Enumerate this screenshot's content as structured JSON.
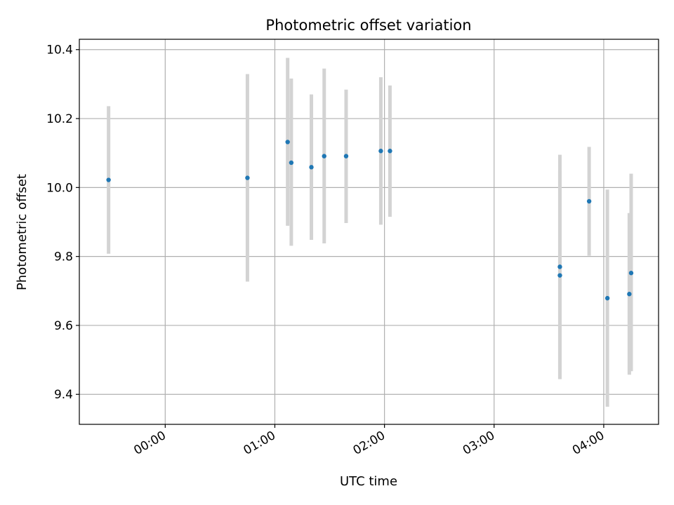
{
  "chart_data": {
    "type": "scatter",
    "title": "Photometric offset variation",
    "xlabel": "UTC time",
    "ylabel": "Photometric offset",
    "x_ticks": [
      "00:00",
      "01:00",
      "02:00",
      "03:00",
      "04:00"
    ],
    "y_ticks": [
      "9.4",
      "9.6",
      "9.8",
      "10.0",
      "10.2",
      "10.4"
    ],
    "xlim": [
      "23:13",
      "04:30"
    ],
    "ylim": [
      9.313,
      10.43
    ],
    "grid": true,
    "colors": {
      "point": "#1f77b4",
      "errorbar": "#d3d3d3",
      "grid": "#b0b0b0"
    },
    "points": [
      {
        "x": "23:29",
        "y": 10.022,
        "lo": 9.808,
        "hi": 10.236
      },
      {
        "x": "00:45",
        "y": 10.028,
        "lo": 9.727,
        "hi": 10.329
      },
      {
        "x": "01:07",
        "y": 10.132,
        "lo": 9.889,
        "hi": 10.376
      },
      {
        "x": "01:09",
        "y": 10.072,
        "lo": 9.831,
        "hi": 10.316
      },
      {
        "x": "01:20",
        "y": 10.059,
        "lo": 9.848,
        "hi": 10.27
      },
      {
        "x": "01:27",
        "y": 10.091,
        "lo": 9.838,
        "hi": 10.345
      },
      {
        "x": "01:39",
        "y": 10.091,
        "lo": 9.897,
        "hi": 10.284
      },
      {
        "x": "01:58",
        "y": 10.106,
        "lo": 9.892,
        "hi": 10.32
      },
      {
        "x": "02:03",
        "y": 10.106,
        "lo": 9.915,
        "hi": 10.296
      },
      {
        "x": "03:36",
        "y": 9.77,
        "lo": 9.445,
        "hi": 10.095
      },
      {
        "x": "03:36",
        "y": 9.745,
        "lo": 9.444,
        "hi": 10.049
      },
      {
        "x": "03:52",
        "y": 9.96,
        "lo": 9.802,
        "hi": 10.118
      },
      {
        "x": "04:02",
        "y": 9.679,
        "lo": 9.364,
        "hi": 9.994
      },
      {
        "x": "04:14",
        "y": 9.691,
        "lo": 9.457,
        "hi": 9.926
      },
      {
        "x": "04:15",
        "y": 9.752,
        "lo": 9.467,
        "hi": 10.04
      }
    ]
  }
}
